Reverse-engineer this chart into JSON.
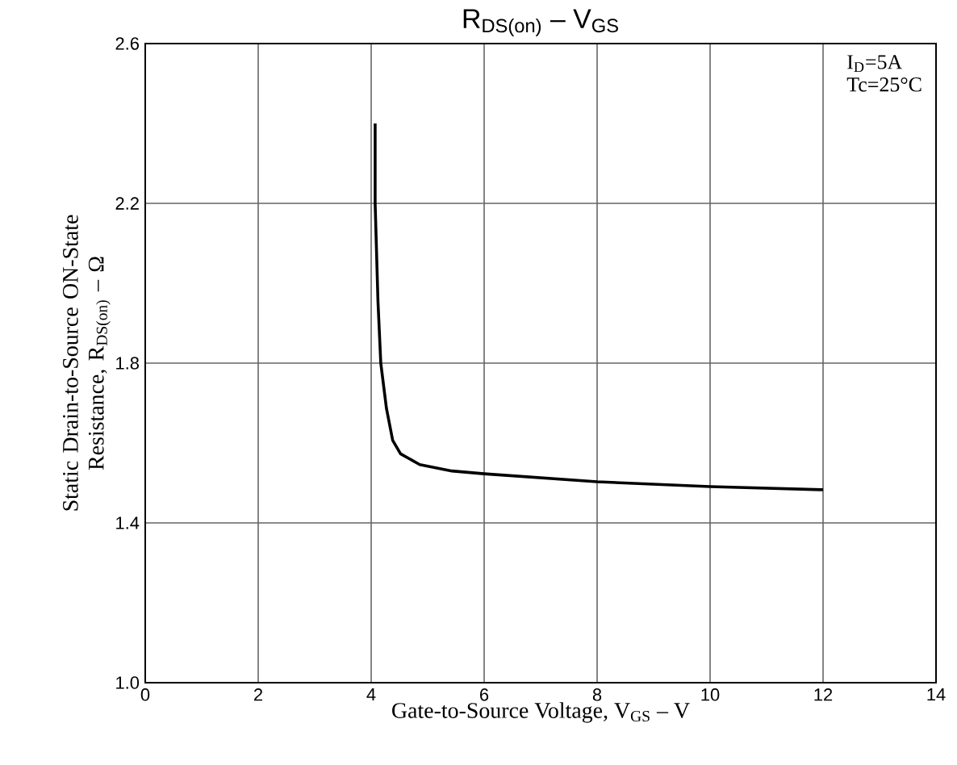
{
  "chart_data": {
    "type": "line",
    "title": "R$_{DS(on)}$ – V$_{GS}$",
    "xlabel": "Gate-to-Source Voltage, V$_{GS}$ – V",
    "ylabel": "Static Drain-to-Source ON-State Resistance, R$_{DS(on)}$ – Ω",
    "annotations": [
      "I$_{D}$=5A",
      "Tc=25°C"
    ],
    "x": [
      4.07,
      4.07,
      4.12,
      4.17,
      4.27,
      4.38,
      4.52,
      4.86,
      5.43,
      6.0,
      8.0,
      10.0,
      12.0
    ],
    "series": [
      {
        "color": "#000000",
        "values": [
          2.4,
          2.2,
          1.955,
          1.8,
          1.687,
          1.607,
          1.573,
          1.546,
          1.53,
          1.523,
          1.503,
          1.491,
          1.483
        ]
      }
    ],
    "xlim": [
      0,
      14
    ],
    "ylim": [
      1.0,
      2.6
    ],
    "xticks": [
      0,
      2,
      4,
      6,
      8,
      10,
      12,
      14
    ],
    "yticks": [
      {
        "value": 1.0,
        "label": "1.0"
      },
      {
        "value": 1.4,
        "label": "1.4"
      },
      {
        "value": 1.8,
        "label": "1.8"
      },
      {
        "value": 2.2,
        "label": "2.2"
      },
      {
        "value": 2.6,
        "label": "2.6"
      }
    ],
    "grid": true,
    "marker": "none",
    "line_style": "solid"
  }
}
